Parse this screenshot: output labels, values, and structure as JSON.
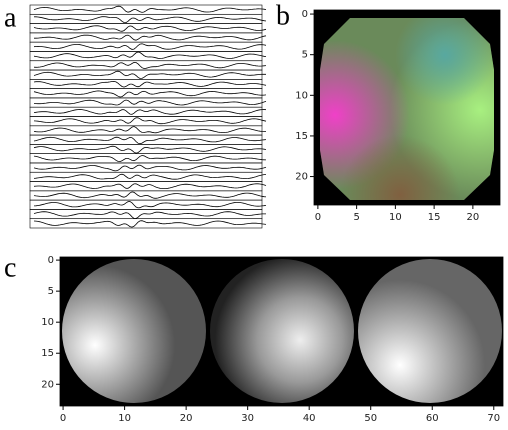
{
  "panels": [
    {
      "label": "a"
    },
    {
      "label": "b",
      "xlim": [
        -0.5,
        23.5
      ],
      "ylim": [
        -0.5,
        23.5
      ],
      "xticks": [
        0,
        5,
        10,
        15,
        20
      ],
      "yticks": [
        0,
        5,
        10,
        15,
        20
      ]
    },
    {
      "label": "c",
      "xlim": [
        -0.5,
        71.5
      ],
      "ylim": [
        -0.5,
        23.5
      ],
      "xticks": [
        0,
        10,
        20,
        30,
        40,
        50,
        60,
        70
      ],
      "yticks": [
        0,
        5,
        10,
        15,
        20
      ]
    }
  ]
}
